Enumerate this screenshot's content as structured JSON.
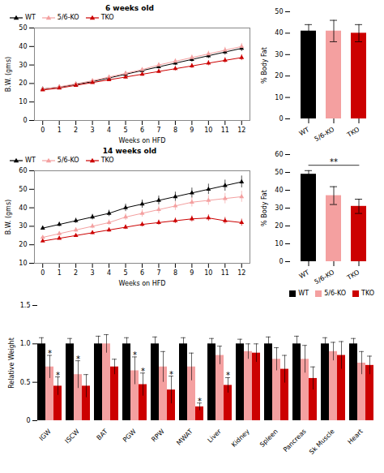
{
  "chart_data": [
    {
      "type": "line",
      "title": "6 weeks old",
      "x_label": "Weeks on HFD",
      "y_label": "B.W. (gms)",
      "x": [
        0,
        1,
        2,
        3,
        4,
        5,
        6,
        7,
        8,
        9,
        10,
        11,
        12
      ],
      "xlim": [
        -0.5,
        12.5
      ],
      "xticks": [
        0,
        1,
        2,
        3,
        4,
        5,
        6,
        7,
        8,
        9,
        10,
        11,
        12
      ],
      "ylim": [
        0,
        50
      ],
      "yticks": [
        0,
        10,
        20,
        30,
        40,
        50
      ],
      "legend": "upper left",
      "marker": "triangle",
      "series": [
        {
          "name": "WT",
          "color": "#000000",
          "values": [
            17,
            18,
            19.5,
            21,
            23,
            25,
            27,
            29,
            31,
            33,
            35,
            37,
            39
          ],
          "errors": [
            0.5,
            0.6,
            0.7,
            0.8,
            0.9,
            1.0,
            1.1,
            1.2,
            1.3,
            1.4,
            1.5,
            1.6,
            1.7
          ]
        },
        {
          "name": "5/6-KO",
          "color": "#f4a0a0",
          "values": [
            17,
            18.2,
            19.8,
            21.5,
            23.5,
            25.5,
            27.5,
            30,
            32,
            34,
            36,
            38,
            40
          ],
          "errors": [
            0.5,
            0.6,
            0.7,
            0.8,
            0.9,
            1.0,
            1.1,
            1.2,
            1.3,
            1.4,
            1.5,
            1.6,
            1.7
          ]
        },
        {
          "name": "TKO",
          "color": "#cc0000",
          "values": [
            16.5,
            17.5,
            19,
            20.5,
            22,
            23.5,
            25,
            26.5,
            28,
            29.5,
            31,
            32.5,
            34
          ],
          "errors": [
            0.5,
            0.5,
            0.6,
            0.7,
            0.8,
            0.9,
            1.0,
            1.1,
            1.2,
            1.3,
            1.4,
            1.5,
            1.6
          ]
        }
      ]
    },
    {
      "type": "bar",
      "y_label": "% Body Fat",
      "categories": [
        "WT",
        "5/6-KO",
        "TKO"
      ],
      "values": [
        41,
        41,
        40
      ],
      "errors": [
        3,
        5,
        4
      ],
      "colors": [
        "#000000",
        "#f4a0a0",
        "#cc0000"
      ],
      "ylim": [
        0,
        50
      ],
      "yticks": [
        0,
        10,
        20,
        30,
        40,
        50
      ]
    },
    {
      "type": "line",
      "title": "14 weeks old",
      "x_label": "Weeks on HFD",
      "y_label": "B.W. (gms)",
      "x": [
        0,
        1,
        2,
        3,
        4,
        5,
        6,
        7,
        8,
        9,
        10,
        11,
        12
      ],
      "xlim": [
        -0.5,
        12.5
      ],
      "xticks": [
        0,
        1,
        2,
        3,
        4,
        5,
        6,
        7,
        8,
        9,
        10,
        11,
        12
      ],
      "ylim": [
        10,
        60
      ],
      "yticks": [
        10,
        20,
        30,
        40,
        50,
        60
      ],
      "legend": "upper left",
      "marker": "triangle",
      "series": [
        {
          "name": "WT",
          "color": "#000000",
          "values": [
            29,
            31,
            33,
            35,
            37,
            40,
            42,
            44,
            46,
            48,
            50,
            52,
            54
          ],
          "errors": [
            1.0,
            1.2,
            1.4,
            1.5,
            1.7,
            2.0,
            2.2,
            2.4,
            2.5,
            2.7,
            2.8,
            3.0,
            3.2
          ]
        },
        {
          "name": "5/6-KO",
          "color": "#f4a0a0",
          "values": [
            24,
            26,
            28,
            30,
            32,
            35,
            37,
            39,
            41,
            43,
            44,
            45,
            46
          ],
          "errors": [
            0.8,
            1.0,
            1.2,
            1.3,
            1.5,
            1.8,
            2.0,
            2.2,
            2.4,
            2.5,
            2.6,
            2.8,
            3.0
          ]
        },
        {
          "name": "TKO",
          "color": "#cc0000",
          "values": [
            22,
            23.5,
            25,
            26.5,
            28,
            29.5,
            31,
            32,
            33,
            34,
            34.5,
            33,
            32
          ],
          "errors": [
            0.6,
            0.8,
            0.9,
            1.0,
            1.1,
            1.2,
            1.3,
            1.4,
            1.5,
            1.6,
            1.7,
            1.8,
            1.9
          ]
        }
      ]
    },
    {
      "type": "bar",
      "y_label": "% Body Fat",
      "categories": [
        "WT",
        "5/6-KO",
        "TKO"
      ],
      "values": [
        49,
        37,
        31
      ],
      "errors": [
        2,
        5,
        4
      ],
      "colors": [
        "#000000",
        "#f4a0a0",
        "#cc0000"
      ],
      "ylim": [
        0,
        60
      ],
      "yticks": [
        0,
        10,
        20,
        30,
        40,
        50,
        60
      ],
      "annotations": [
        {
          "text": "**",
          "from": "WT",
          "to": "TKO"
        }
      ]
    },
    {
      "type": "bar",
      "y_label": "Relative Weight",
      "categories": [
        "IGW",
        "ISCW",
        "BAT",
        "PGW",
        "RPW",
        "MWAT",
        "Liver",
        "Kidney",
        "Spleen",
        "Pancreas",
        "Sk Muscle",
        "Heart"
      ],
      "ylim": [
        0,
        1.5
      ],
      "yticks": [
        0,
        0.5,
        {
          "value": 1.0,
          "label": "1.0"
        },
        1.5
      ],
      "legend": "upper right",
      "series": [
        {
          "name": "WT",
          "color": "#000000",
          "values": [
            1.0,
            1.0,
            1.0,
            1.0,
            1.0,
            1.0,
            1.0,
            1.0,
            1.0,
            1.0,
            1.0,
            1.0
          ],
          "errors": [
            0.08,
            0.07,
            0.1,
            0.08,
            0.09,
            0.08,
            0.07,
            0.06,
            0.09,
            0.1,
            0.08,
            0.07
          ]
        },
        {
          "name": "5/6-KO",
          "color": "#f4a0a0",
          "values": [
            0.7,
            0.6,
            1.0,
            0.65,
            0.7,
            0.7,
            0.85,
            0.9,
            0.8,
            0.8,
            0.9,
            0.75
          ],
          "errors": [
            0.15,
            0.18,
            0.12,
            0.18,
            0.2,
            0.18,
            0.12,
            0.1,
            0.15,
            0.18,
            0.12,
            0.15
          ]
        },
        {
          "name": "TKO",
          "color": "#cc0000",
          "values": [
            0.45,
            0.45,
            0.7,
            0.47,
            0.4,
            0.18,
            0.46,
            0.88,
            0.67,
            0.55,
            0.85,
            0.72
          ],
          "errors": [
            0.12,
            0.15,
            0.1,
            0.15,
            0.18,
            0.05,
            0.1,
            0.12,
            0.18,
            0.15,
            0.18,
            0.12
          ]
        }
      ],
      "annotations": [
        {
          "text": "*",
          "series": "5/6-KO",
          "categories": [
            "IGW",
            "ISCW",
            "PGW"
          ]
        },
        {
          "text": "*",
          "series": "TKO",
          "categories": [
            "IGW",
            "PGW",
            "RPW",
            "MWAT",
            "Liver"
          ]
        }
      ]
    }
  ]
}
